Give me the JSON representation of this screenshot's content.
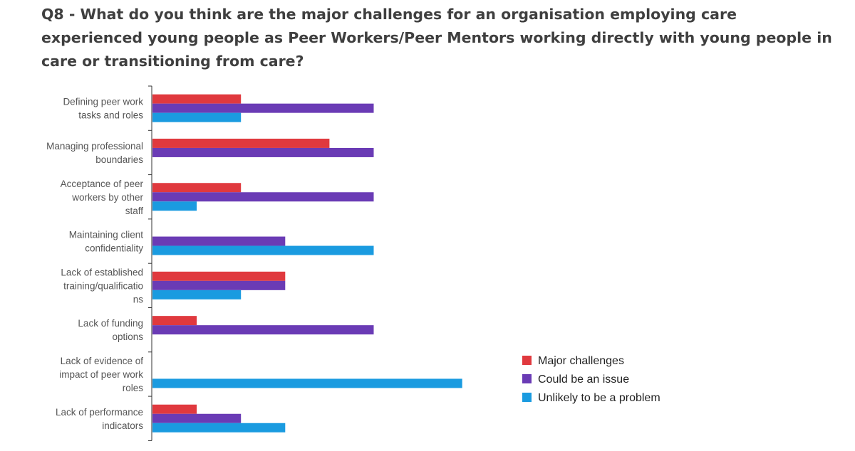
{
  "title": "Q8 - What do you think are the major challenges for an organisation employing care experienced young people as Peer Workers/Peer Mentors working directly with young people in care or transitioning from care?",
  "chart_data": {
    "type": "bar",
    "orientation": "horizontal",
    "title": "Q8 - What do you think are the major challenges for an organisation employing care experienced young people as Peer Workers/Peer Mentors working directly with young people in care or transitioning from care?",
    "categories": [
      [
        "Defining peer work",
        "tasks and roles"
      ],
      [
        "Managing professional",
        "boundaries"
      ],
      [
        "Acceptance of peer",
        "workers by other",
        "staff"
      ],
      [
        "Maintaining client",
        "confidentiality"
      ],
      [
        "Lack of established",
        "training/qualificatio",
        "ns"
      ],
      [
        "Lack of funding",
        "options"
      ],
      [
        "Lack of evidence of",
        "impact of peer work",
        "roles"
      ],
      [
        "Lack of performance",
        "indicators"
      ]
    ],
    "series": [
      {
        "name": "Major challenges",
        "color": "#e0393e",
        "values": [
          2,
          4,
          2,
          0,
          3,
          1,
          0,
          1
        ]
      },
      {
        "name": "Could be an issue",
        "color": "#6a3bb5",
        "values": [
          5,
          5,
          5,
          3,
          3,
          5,
          0,
          2
        ]
      },
      {
        "name": "Unlikely to be a problem",
        "color": "#1a9be0",
        "values": [
          2,
          0,
          1,
          5,
          2,
          0,
          7,
          3
        ]
      }
    ],
    "xlim": [
      0,
      7
    ],
    "legend": "right",
    "grid": false
  }
}
